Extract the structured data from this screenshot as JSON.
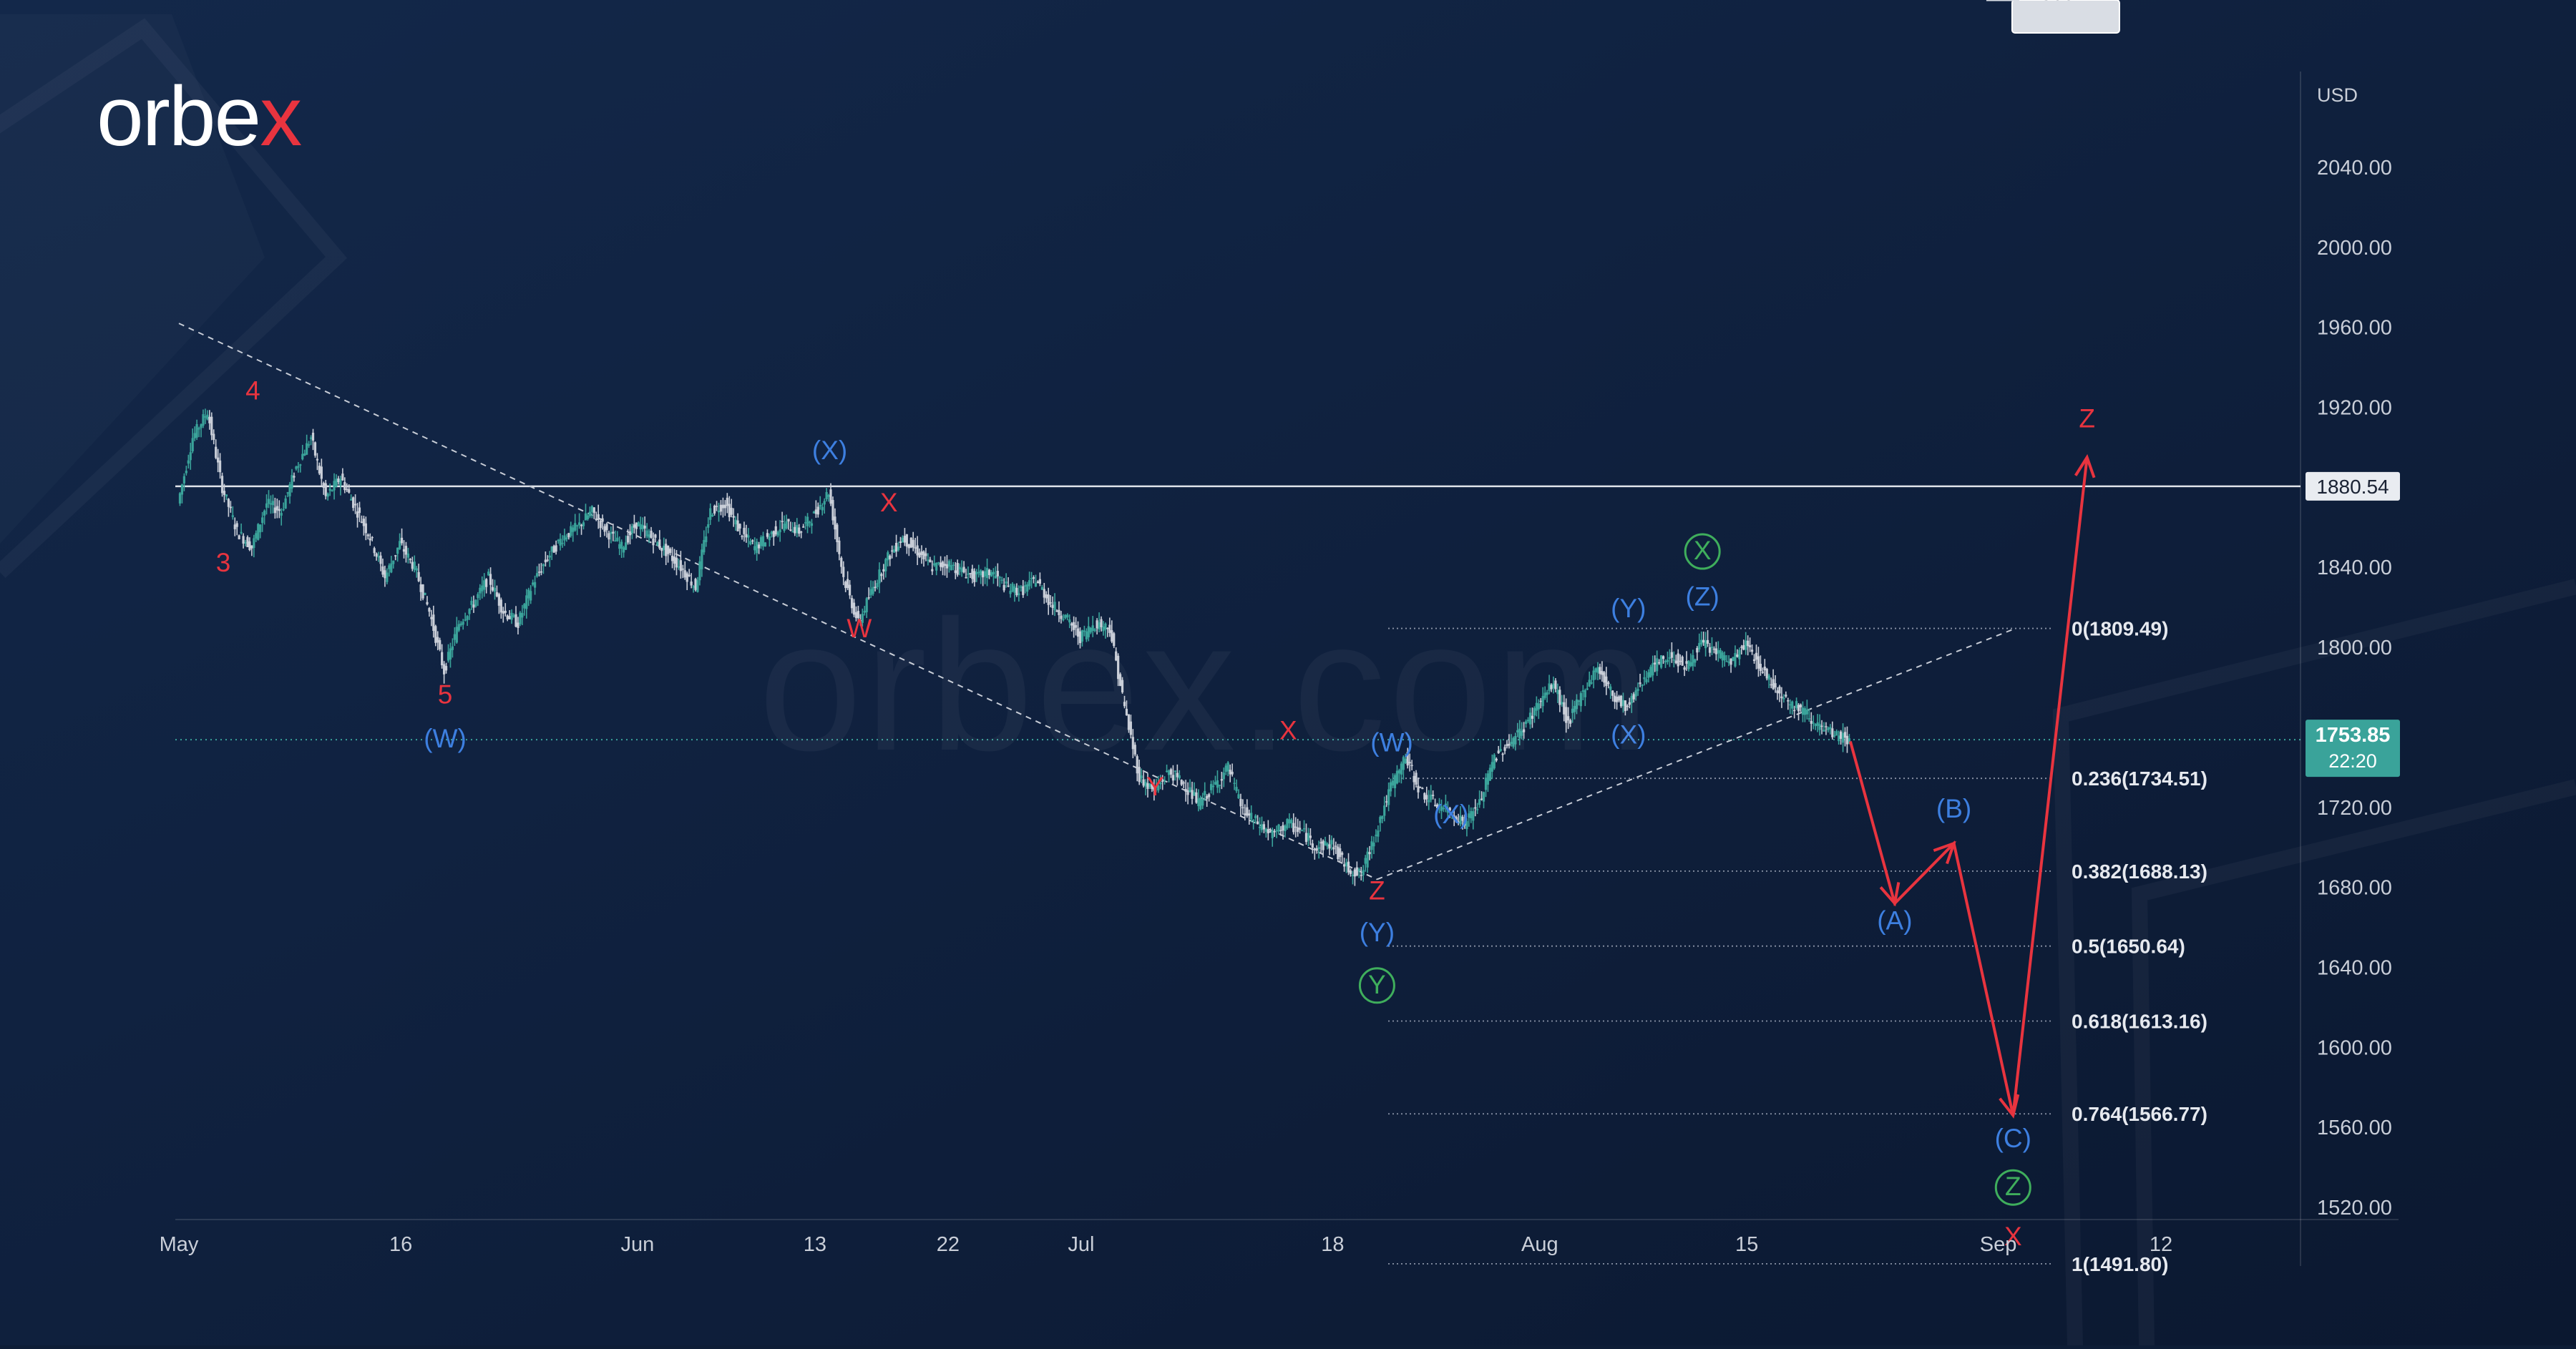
{
  "brand": {
    "name_main": "orbe",
    "name_accent": "x",
    "watermark": "orbex.com"
  },
  "colors": {
    "background": "#0e1d36",
    "candle": "#3aa39a",
    "red_wave": "#e8343f",
    "blue_wave": "#3d7fe0",
    "green_wave": "#3fae5c",
    "price_tag_bg": "#3aa39a",
    "fib_line": "#8a93a6",
    "axis_text": "#c9ced8"
  },
  "chart_data": {
    "type": "candlestick",
    "instrument_currency": "USD",
    "ylim": [
      1490,
      2080
    ],
    "y_ticks": [
      {
        "label": "2040.00",
        "value": 2040
      },
      {
        "label": "2000.00",
        "value": 2000
      },
      {
        "label": "1960.00",
        "value": 1960
      },
      {
        "label": "1920.00",
        "value": 1920
      },
      {
        "label": "1840.00",
        "value": 1840
      },
      {
        "label": "1800.00",
        "value": 1800
      },
      {
        "label": "1720.00",
        "value": 1720
      },
      {
        "label": "1680.00",
        "value": 1680
      },
      {
        "label": "1640.00",
        "value": 1640
      },
      {
        "label": "1600.00",
        "value": 1600
      },
      {
        "label": "1560.00",
        "value": 1560
      },
      {
        "label": "1520.00",
        "value": 1520
      }
    ],
    "x_ticks": [
      {
        "label": "May",
        "t": 0
      },
      {
        "label": "16",
        "t": 15
      },
      {
        "label": "Jun",
        "t": 31
      },
      {
        "label": "13",
        "t": 43
      },
      {
        "label": "22",
        "t": 52
      },
      {
        "label": "Jul",
        "t": 61
      },
      {
        "label": "18",
        "t": 78
      },
      {
        "label": "Aug",
        "t": 92
      },
      {
        "label": "15",
        "t": 106
      },
      {
        "label": "Sep",
        "t": 123
      },
      {
        "label": "12",
        "t": 134
      }
    ],
    "x_range": [
      -2,
      147
    ],
    "horizontal_level": {
      "value": 1880.54,
      "label": "1880.54"
    },
    "current_price": {
      "value": 1753.85,
      "label": "1753.85",
      "countdown": "22:20"
    },
    "target_callout": {
      "value": 1566.77,
      "label": "1566.77",
      "t": 122
    },
    "fibonacci": {
      "t_start": 78,
      "t_end": 122,
      "levels": [
        {
          "label": "0(1809.49)",
          "value": 1809.49
        },
        {
          "label": "0.236(1734.51)",
          "value": 1734.51
        },
        {
          "label": "0.382(1688.13)",
          "value": 1688.13
        },
        {
          "label": "0.5(1650.64)",
          "value": 1650.64
        },
        {
          "label": "0.618(1613.16)",
          "value": 1613.16
        },
        {
          "label": "0.764(1566.77)",
          "value": 1566.77
        },
        {
          "label": "1(1491.80)",
          "value": 1491.8
        }
      ]
    },
    "trendlines": [
      {
        "t1": 0,
        "v1": 1962,
        "t2": 81,
        "v2": 1684
      },
      {
        "t1": 81,
        "v1": 1684,
        "t2": 124,
        "v2": 1809
      }
    ],
    "price_path": [
      [
        0,
        1872
      ],
      [
        1,
        1905
      ],
      [
        2,
        1918
      ],
      [
        3,
        1880
      ],
      [
        4,
        1858
      ],
      [
        5,
        1850
      ],
      [
        6,
        1872
      ],
      [
        7,
        1868
      ],
      [
        8,
        1890
      ],
      [
        9,
        1905
      ],
      [
        10,
        1875
      ],
      [
        11,
        1885
      ],
      [
        12,
        1870
      ],
      [
        13,
        1855
      ],
      [
        14,
        1835
      ],
      [
        15,
        1852
      ],
      [
        16,
        1840
      ],
      [
        17,
        1818
      ],
      [
        18,
        1788
      ],
      [
        19,
        1812
      ],
      [
        20,
        1822
      ],
      [
        21,
        1835
      ],
      [
        22,
        1818
      ],
      [
        23,
        1812
      ],
      [
        24,
        1832
      ],
      [
        25,
        1845
      ],
      [
        26,
        1855
      ],
      [
        27,
        1860
      ],
      [
        28,
        1868
      ],
      [
        29,
        1858
      ],
      [
        30,
        1850
      ],
      [
        31,
        1862
      ],
      [
        32,
        1855
      ],
      [
        33,
        1848
      ],
      [
        34,
        1840
      ],
      [
        35,
        1830
      ],
      [
        36,
        1868
      ],
      [
        37,
        1872
      ],
      [
        38,
        1858
      ],
      [
        39,
        1850
      ],
      [
        40,
        1856
      ],
      [
        41,
        1862
      ],
      [
        42,
        1858
      ],
      [
        43,
        1866
      ],
      [
        44,
        1878
      ],
      [
        45,
        1835
      ],
      [
        46,
        1812
      ],
      [
        47,
        1830
      ],
      [
        48,
        1845
      ],
      [
        49,
        1855
      ],
      [
        50,
        1848
      ],
      [
        51,
        1840
      ],
      [
        52,
        1842
      ],
      [
        53,
        1838
      ],
      [
        54,
        1835
      ],
      [
        55,
        1838
      ],
      [
        56,
        1830
      ],
      [
        57,
        1828
      ],
      [
        58,
        1834
      ],
      [
        59,
        1822
      ],
      [
        60,
        1815
      ],
      [
        61,
        1805
      ],
      [
        62,
        1812
      ],
      [
        63,
        1810
      ],
      [
        64,
        1770
      ],
      [
        65,
        1735
      ],
      [
        66,
        1728
      ],
      [
        67,
        1738
      ],
      [
        68,
        1732
      ],
      [
        69,
        1722
      ],
      [
        70,
        1730
      ],
      [
        71,
        1740
      ],
      [
        72,
        1718
      ],
      [
        73,
        1712
      ],
      [
        74,
        1706
      ],
      [
        75,
        1712
      ],
      [
        76,
        1708
      ],
      [
        77,
        1700
      ],
      [
        78,
        1702
      ],
      [
        79,
        1690
      ],
      [
        80,
        1686
      ],
      [
        81,
        1708
      ],
      [
        82,
        1730
      ],
      [
        83,
        1745
      ],
      [
        84,
        1728
      ],
      [
        85,
        1722
      ],
      [
        86,
        1718
      ],
      [
        87,
        1712
      ],
      [
        88,
        1722
      ],
      [
        89,
        1745
      ],
      [
        90,
        1752
      ],
      [
        91,
        1760
      ],
      [
        92,
        1772
      ],
      [
        93,
        1782
      ],
      [
        94,
        1762
      ],
      [
        95,
        1778
      ],
      [
        96,
        1790
      ],
      [
        97,
        1776
      ],
      [
        98,
        1770
      ],
      [
        99,
        1784
      ],
      [
        100,
        1792
      ],
      [
        101,
        1796
      ],
      [
        102,
        1790
      ],
      [
        103,
        1802
      ],
      [
        104,
        1798
      ],
      [
        105,
        1792
      ],
      [
        106,
        1802
      ],
      [
        107,
        1790
      ],
      [
        108,
        1780
      ],
      [
        109,
        1772
      ],
      [
        110,
        1768
      ],
      [
        111,
        1760
      ],
      [
        112,
        1756
      ],
      [
        113,
        1753.85
      ]
    ],
    "forecast_path": [
      {
        "t": 113,
        "v": 1753
      },
      {
        "t": 116,
        "v": 1672
      },
      {
        "t": 120,
        "v": 1702
      },
      {
        "t": 124,
        "v": 1566
      },
      {
        "t": 129,
        "v": 1895
      }
    ],
    "wave_labels": [
      {
        "text": "4",
        "t": 5,
        "v": 1924,
        "color": "red"
      },
      {
        "text": "3",
        "t": 3,
        "v": 1838,
        "color": "red"
      },
      {
        "text": "5",
        "t": 18,
        "v": 1772,
        "color": "red"
      },
      {
        "text": "(W)",
        "t": 18,
        "v": 1750,
        "color": "blue"
      },
      {
        "text": "(X)",
        "t": 44,
        "v": 1894,
        "color": "blue"
      },
      {
        "text": "X",
        "t": 48,
        "v": 1868,
        "color": "red"
      },
      {
        "text": "W",
        "t": 46,
        "v": 1805,
        "color": "red"
      },
      {
        "text": "Y",
        "t": 66,
        "v": 1726,
        "color": "red"
      },
      {
        "text": "X",
        "t": 75,
        "v": 1754,
        "color": "red"
      },
      {
        "text": "(W)",
        "t": 82,
        "v": 1748,
        "color": "blue"
      },
      {
        "text": "(X)",
        "t": 86,
        "v": 1712,
        "color": "blue"
      },
      {
        "text": "Z",
        "t": 81,
        "v": 1674,
        "color": "red"
      },
      {
        "text": "(Y)",
        "t": 81,
        "v": 1653,
        "color": "blue"
      },
      {
        "text": "Y",
        "t": 81,
        "v": 1627,
        "color": "green",
        "circled": true
      },
      {
        "text": "(Y)",
        "t": 98,
        "v": 1815,
        "color": "blue"
      },
      {
        "text": "(X)",
        "t": 98,
        "v": 1752,
        "color": "blue"
      },
      {
        "text": "X",
        "t": 103,
        "v": 1844,
        "color": "green",
        "circled": true
      },
      {
        "text": "(Z)",
        "t": 103,
        "v": 1821,
        "color": "blue"
      },
      {
        "text": "(B)",
        "t": 120,
        "v": 1715,
        "color": "blue"
      },
      {
        "text": "(A)",
        "t": 116,
        "v": 1659,
        "color": "blue"
      },
      {
        "text": "(C)",
        "t": 124,
        "v": 1550,
        "color": "blue"
      },
      {
        "text": "Z",
        "t": 124,
        "v": 1526,
        "color": "green",
        "circled": true
      },
      {
        "text": "X",
        "t": 124,
        "v": 1501,
        "color": "red"
      },
      {
        "text": "Z",
        "t": 129,
        "v": 1910,
        "color": "red"
      }
    ]
  }
}
